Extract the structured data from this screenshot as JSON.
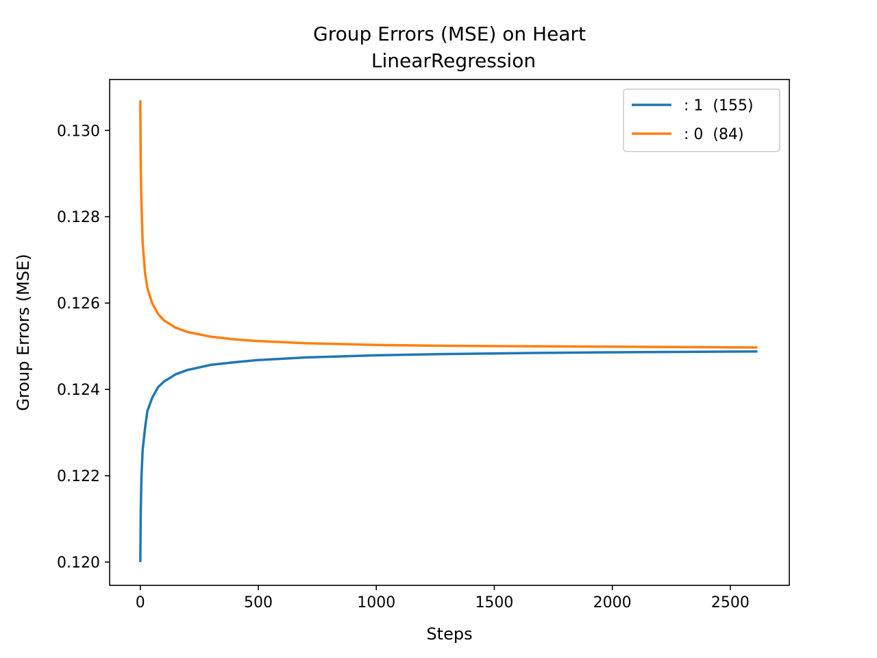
{
  "chart_data": {
    "type": "line",
    "title": "Group Errors (MSE) on Heart",
    "subtitle": "LinearRegression",
    "xlabel": "Steps",
    "ylabel": "Group Errors (MSE)",
    "xlim": [
      -130,
      2750
    ],
    "ylim": [
      0.11946,
      0.13118
    ],
    "xticks": [
      0,
      500,
      1000,
      1500,
      2000,
      2500
    ],
    "xtick_labels": [
      "0",
      "500",
      "1000",
      "1500",
      "2000",
      "2500"
    ],
    "yticks": [
      0.12,
      0.122,
      0.124,
      0.126,
      0.128,
      0.13
    ],
    "ytick_labels": [
      "0.120",
      "0.122",
      "0.124",
      "0.126",
      "0.128",
      "0.130"
    ],
    "grid": false,
    "legend_position": "top-right",
    "series": [
      {
        "name": ": 1  (155)",
        "color": "#1f77b4",
        "x": [
          0,
          2,
          5,
          10,
          20,
          30,
          50,
          75,
          100,
          150,
          200,
          300,
          400,
          500,
          700,
          1000,
          1300,
          1600,
          2000,
          2300,
          2615
        ],
        "y": [
          0.12,
          0.1212,
          0.122,
          0.1226,
          0.1231,
          0.1235,
          0.1238,
          0.12405,
          0.12418,
          0.12435,
          0.12445,
          0.12457,
          0.12463,
          0.12468,
          0.12474,
          0.12479,
          0.12482,
          0.12484,
          0.12486,
          0.12487,
          0.12488
        ]
      },
      {
        "name": ": 0  (84)",
        "color": "#ff7f0e",
        "x": [
          0,
          2,
          5,
          10,
          20,
          30,
          50,
          75,
          100,
          150,
          200,
          300,
          400,
          500,
          700,
          1000,
          1300,
          1600,
          2000,
          2300,
          2615
        ],
        "y": [
          0.1307,
          0.1291,
          0.1283,
          0.1274,
          0.1267,
          0.12635,
          0.126,
          0.12575,
          0.1256,
          0.12543,
          0.12533,
          0.12522,
          0.12516,
          0.12512,
          0.12507,
          0.12503,
          0.12501,
          0.125,
          0.12499,
          0.12498,
          0.12497
        ]
      }
    ]
  }
}
